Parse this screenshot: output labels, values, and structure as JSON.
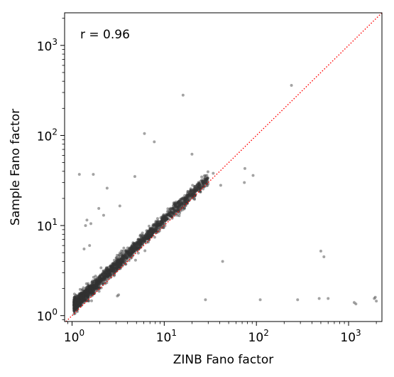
{
  "chart_data": {
    "type": "scatter",
    "title": "",
    "xlabel": "ZINB Fano factor",
    "ylabel": "Sample Fano factor",
    "xscale": "log",
    "yscale": "log",
    "xlim": [
      0.83,
      2300
    ],
    "ylim": [
      0.86,
      2300
    ],
    "x_ticks": [
      1,
      10,
      100,
      1000
    ],
    "y_ticks": [
      1,
      10,
      100,
      1000
    ],
    "x_tick_labels": [
      {
        "base": "10",
        "exp": "0"
      },
      {
        "base": "10",
        "exp": "1"
      },
      {
        "base": "10",
        "exp": "2"
      },
      {
        "base": "10",
        "exp": "3"
      }
    ],
    "y_tick_labels": [
      {
        "base": "10",
        "exp": "0"
      },
      {
        "base": "10",
        "exp": "1"
      },
      {
        "base": "10",
        "exp": "2"
      },
      {
        "base": "10",
        "exp": "3"
      }
    ],
    "annotation": "r = 0.96",
    "reference_line": {
      "type": "identity",
      "style": "dotted",
      "color": "#ff0000"
    },
    "point_color": "#333333",
    "point_opacity": 0.45,
    "grid": false,
    "legend": "none",
    "main_cloud": {
      "description": "dense band of points above the y=x line",
      "x_range": [
        1.05,
        30
      ],
      "y_over_x_ratio_range": [
        1.05,
        1.6
      ],
      "count": 2400
    },
    "series": [
      {
        "x": [
          240,
          16,
          6.1,
          7.8,
          20,
          4.8,
          2.4,
          1.2,
          1.7,
          1.95,
          1.4,
          1.45,
          1.6,
          2.2,
          3.3,
          28,
          43,
          110,
          280,
          500,
          540,
          600,
          480,
          1150,
          1200,
          1900,
          1950,
          2000,
          74,
          75,
          92,
          34,
          41,
          3.2,
          3.1,
          1.35,
          1.55
        ],
        "y": [
          360,
          280,
          105,
          85,
          62,
          35,
          26,
          37,
          37,
          15.5,
          10,
          11.5,
          10.5,
          13,
          16.5,
          1.5,
          4.0,
          1.5,
          1.5,
          5.2,
          4.5,
          1.55,
          1.55,
          1.4,
          1.35,
          1.55,
          1.6,
          1.45,
          30,
          43,
          36,
          38,
          28,
          1.7,
          1.65,
          5.5,
          6.0
        ]
      }
    ]
  }
}
